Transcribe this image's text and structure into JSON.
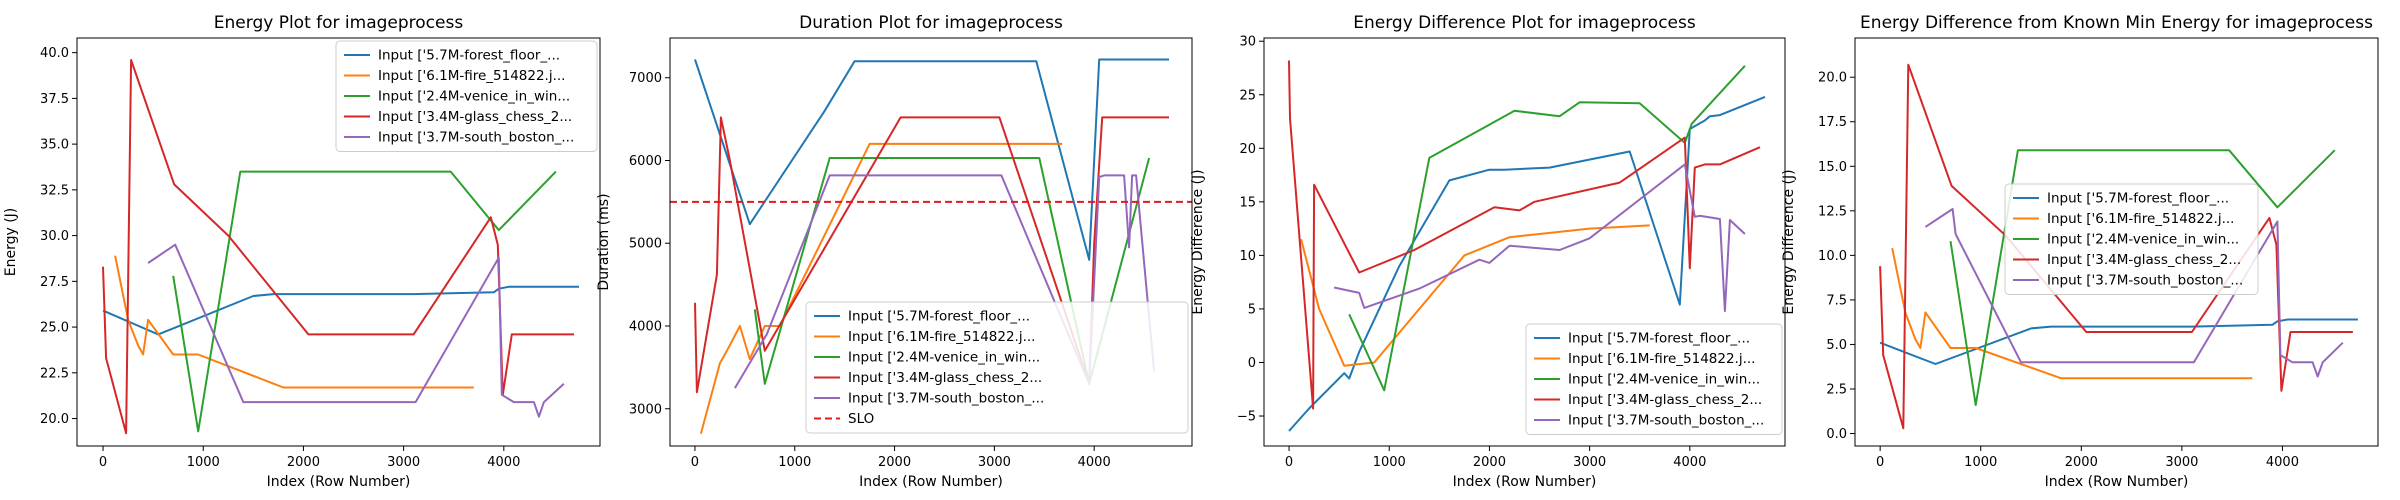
{
  "figure": {
    "colors": {
      "series": [
        "#1f77b4",
        "#ff7f0e",
        "#2ca02c",
        "#d62728",
        "#9467bd"
      ],
      "slo": "#e41a1c",
      "frame": "#000000",
      "legend_border": "#cccccc"
    }
  },
  "chart_data": [
    {
      "type": "line",
      "title": "Energy Plot for imageprocess",
      "xlabel": "Index (Row Number)",
      "ylabel": "Energy (J)",
      "xlim": [
        -260,
        4960
      ],
      "ylim": [
        18.5,
        40.8
      ],
      "xticks": [
        0,
        1000,
        2000,
        3000,
        4000
      ],
      "yticks": [
        20.0,
        22.5,
        25.0,
        27.5,
        30.0,
        32.5,
        35.0,
        37.5,
        40.0
      ],
      "ytick_labels": [
        "20.0",
        "22.5",
        "25.0",
        "27.5",
        "30.0",
        "32.5",
        "35.0",
        "37.5",
        "40.0"
      ],
      "grid": false,
      "legend": "top-right",
      "series": [
        {
          "name": "Input ['5.7M-forest_floor_...",
          "x": [
            0,
            550,
            1500,
            1700,
            3100,
            3900,
            3950,
            4050,
            4100,
            4500,
            4750
          ],
          "y": [
            25.9,
            24.6,
            26.7,
            26.8,
            26.8,
            26.9,
            27.1,
            27.2,
            27.2,
            27.2,
            27.2
          ]
        },
        {
          "name": "Input ['6.1M-fire_514822.j...",
          "x": [
            120,
            250,
            350,
            400,
            450,
            700,
            950,
            1800,
            3700
          ],
          "y": [
            28.9,
            25.4,
            24.0,
            23.5,
            25.4,
            23.5,
            23.5,
            21.7,
            21.7
          ]
        },
        {
          "name": "Input ['2.4M-venice_in_win...",
          "x": [
            700,
            950,
            1370,
            3470,
            3950,
            4520
          ],
          "y": [
            27.8,
            19.3,
            33.5,
            33.5,
            30.3,
            33.5
          ]
        },
        {
          "name": "Input ['3.4M-glass_chess_2...",
          "x": [
            0,
            30,
            230,
            280,
            710,
            1250,
            2050,
            3100,
            3870,
            3940,
            3990,
            4080,
            4700
          ],
          "y": [
            28.3,
            23.3,
            19.2,
            39.6,
            32.8,
            30.0,
            24.6,
            24.6,
            31.0,
            29.5,
            21.3,
            24.6,
            24.6
          ]
        },
        {
          "name": "Input ['3.7M-south_boston_...",
          "x": [
            450,
            720,
            1400,
            3120,
            3950,
            3980,
            4100,
            4300,
            4350,
            4400,
            4600
          ],
          "y": [
            28.5,
            29.5,
            20.9,
            20.9,
            28.8,
            21.3,
            20.9,
            20.9,
            20.1,
            20.9,
            21.9
          ]
        }
      ]
    },
    {
      "type": "line",
      "title": "Duration Plot for imageprocess",
      "xlabel": "Index (Row Number)",
      "ylabel": "Duration (ms)",
      "xlim": [
        -250,
        4980
      ],
      "ylim": [
        2550,
        7480
      ],
      "xticks": [
        0,
        1000,
        2000,
        3000,
        4000
      ],
      "yticks": [
        3000,
        4000,
        5000,
        6000,
        7000
      ],
      "ytick_labels": [
        "3000",
        "4000",
        "5000",
        "6000",
        "7000"
      ],
      "grid": false,
      "legend": "bottom-right",
      "slo": {
        "name": "SLO",
        "value": 5500
      },
      "series": [
        {
          "name": "Input ['5.7M-forest_floor_...",
          "x": [
            0,
            550,
            1300,
            1600,
            3420,
            3950,
            4050,
            4750
          ],
          "y": [
            7220,
            5230,
            6600,
            7200,
            7200,
            4800,
            7220,
            7220
          ]
        },
        {
          "name": "Input ['6.1M-fire_514822.j...",
          "x": [
            60,
            250,
            320,
            450,
            550,
            700,
            850,
            1750,
            3680
          ],
          "y": [
            2700,
            3550,
            3700,
            4000,
            3600,
            4000,
            4000,
            6200,
            6200
          ]
        },
        {
          "name": "Input ['2.4M-venice_in_win...",
          "x": [
            600,
            700,
            1350,
            3450,
            3950,
            4550
          ],
          "y": [
            4200,
            3300,
            6030,
            6030,
            3300,
            6030
          ]
        },
        {
          "name": "Input ['3.4M-glass_chess_2...",
          "x": [
            0,
            20,
            220,
            260,
            350,
            700,
            2060,
            3050,
            3950,
            4000,
            4080,
            4750
          ],
          "y": [
            4280,
            3200,
            4620,
            6520,
            6000,
            3700,
            6520,
            6520,
            3300,
            5000,
            6520,
            6520
          ]
        },
        {
          "name": "Input ['3.7M-south_boston_...",
          "x": [
            400,
            720,
            1350,
            3070,
            3950,
            4050,
            4100,
            4300,
            4350,
            4380,
            4420,
            4600
          ],
          "y": [
            3250,
            3900,
            5820,
            5820,
            3300,
            5800,
            5820,
            5820,
            4950,
            5820,
            5820,
            3450
          ]
        }
      ]
    },
    {
      "type": "line",
      "title": "Energy Difference Plot for imageprocess",
      "xlabel": "Index (Row Number)",
      "ylabel": "Energy Difference (J)",
      "xlim": [
        -250,
        4950
      ],
      "ylim": [
        -7.8,
        30.3
      ],
      "xticks": [
        0,
        1000,
        2000,
        3000,
        4000
      ],
      "yticks": [
        -5,
        0,
        5,
        10,
        15,
        20,
        25,
        30
      ],
      "ytick_labels": [
        "−5",
        "0",
        "5",
        "10",
        "15",
        "20",
        "25",
        "30"
      ],
      "grid": false,
      "legend": "bottom-right",
      "series": [
        {
          "name": "Input ['5.7M-forest_floor_...",
          "x": [
            0,
            200,
            550,
            600,
            700,
            1100,
            1600,
            2000,
            2150,
            2600,
            3400,
            3900,
            4000,
            4150,
            4200,
            4300,
            4750
          ],
          "y": [
            -6.4,
            -4.3,
            -1.0,
            -1.5,
            1.0,
            9.0,
            17.0,
            18.0,
            18.0,
            18.2,
            19.7,
            5.4,
            21.8,
            22.6,
            23.0,
            23.1,
            24.8
          ]
        },
        {
          "name": "Input ['6.1M-fire_514822.j...",
          "x": [
            120,
            300,
            550,
            650,
            850,
            1750,
            2200,
            3000,
            3600
          ],
          "y": [
            11.5,
            5.0,
            -0.3,
            -0.2,
            0.0,
            10.0,
            11.7,
            12.5,
            12.8
          ]
        },
        {
          "name": "Input ['2.4M-venice_in_win...",
          "x": [
            600,
            950,
            1400,
            2250,
            2700,
            2900,
            3500,
            3950,
            4020,
            4550
          ],
          "y": [
            4.5,
            -2.6,
            19.1,
            23.5,
            23.0,
            24.3,
            24.2,
            20.5,
            22.3,
            27.7
          ]
        },
        {
          "name": "Input ['3.4M-glass_chess_2...",
          "x": [
            0,
            10,
            240,
            250,
            700,
            1250,
            2050,
            2300,
            2450,
            3300,
            3950,
            4000,
            4050,
            4150,
            4300,
            4700
          ],
          "y": [
            28.2,
            22.8,
            -4.3,
            16.6,
            8.4,
            10.5,
            14.5,
            14.2,
            15.0,
            16.8,
            21.0,
            8.8,
            18.2,
            18.5,
            18.5,
            20.1
          ]
        },
        {
          "name": "Input ['3.7M-south_boston_...",
          "x": [
            450,
            700,
            750,
            1300,
            1900,
            2000,
            2200,
            2700,
            3000,
            3950,
            4050,
            4100,
            4300,
            4350,
            4400,
            4550
          ],
          "y": [
            7.0,
            6.5,
            5.1,
            6.9,
            9.6,
            9.3,
            10.9,
            10.5,
            11.6,
            18.5,
            13.6,
            13.7,
            13.4,
            4.8,
            13.3,
            12.0
          ]
        }
      ]
    },
    {
      "type": "line",
      "title": "Energy Difference from Known Min Energy for imageprocess",
      "xlabel": "Index (Row Number)",
      "ylabel": "Energy Difference (J)",
      "xlim": [
        -250,
        4950
      ],
      "ylim": [
        -0.7,
        22.2
      ],
      "xticks": [
        0,
        1000,
        2000,
        3000,
        4000
      ],
      "yticks": [
        0.0,
        2.5,
        5.0,
        7.5,
        10.0,
        12.5,
        15.0,
        17.5,
        20.0
      ],
      "ytick_labels": [
        "0.0",
        "2.5",
        "5.0",
        "7.5",
        "10.0",
        "12.5",
        "15.0",
        "17.5",
        "20.0"
      ],
      "grid": false,
      "legend": "center-right",
      "series": [
        {
          "name": "Input ['5.7M-forest_floor_...",
          "x": [
            0,
            550,
            1500,
            1700,
            3100,
            3900,
            3950,
            4050,
            4100,
            4500,
            4750
          ],
          "y": [
            5.1,
            3.9,
            5.9,
            6.0,
            6.0,
            6.1,
            6.3,
            6.4,
            6.4,
            6.4,
            6.4
          ]
        },
        {
          "name": "Input ['6.1M-fire_514822.j...",
          "x": [
            120,
            250,
            350,
            400,
            450,
            700,
            950,
            1800,
            3700
          ],
          "y": [
            10.4,
            6.8,
            5.3,
            4.8,
            6.8,
            4.8,
            4.8,
            3.1,
            3.1
          ]
        },
        {
          "name": "Input ['2.4M-venice_in_win...",
          "x": [
            700,
            950,
            1370,
            3470,
            3950,
            4520
          ],
          "y": [
            10.8,
            1.6,
            15.9,
            15.9,
            12.7,
            15.9
          ]
        },
        {
          "name": "Input ['3.4M-glass_chess_2...",
          "x": [
            0,
            30,
            230,
            280,
            710,
            1250,
            2050,
            3100,
            3870,
            3940,
            3990,
            4080,
            4700
          ],
          "y": [
            9.4,
            4.4,
            0.3,
            20.7,
            13.9,
            11.1,
            5.7,
            5.7,
            12.1,
            10.6,
            2.4,
            5.7,
            5.7
          ]
        },
        {
          "name": "Input ['3.7M-south_boston_...",
          "x": [
            450,
            720,
            750,
            1400,
            3120,
            3950,
            3980,
            4100,
            4300,
            4350,
            4400,
            4600
          ],
          "y": [
            11.6,
            12.6,
            11.2,
            4.0,
            4.0,
            11.9,
            4.4,
            4.0,
            4.0,
            3.2,
            4.0,
            5.1
          ]
        }
      ]
    }
  ]
}
